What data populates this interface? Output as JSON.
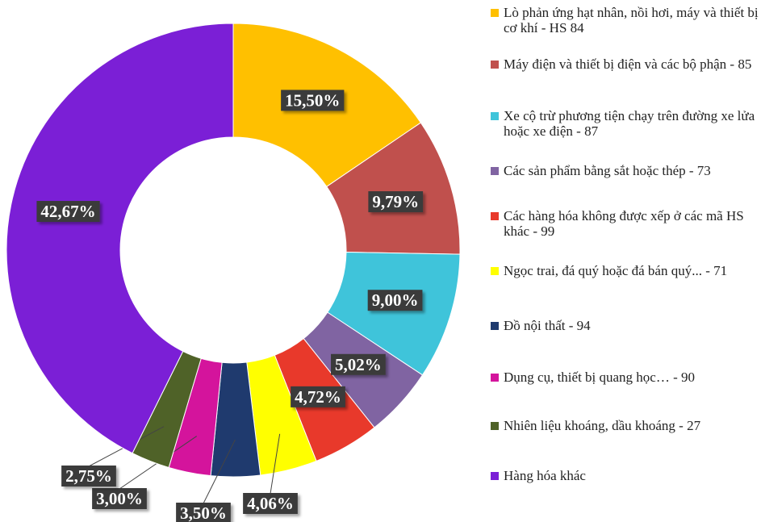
{
  "chart_data": {
    "type": "donut",
    "categories": [
      "Lò phản ứng hạt nhân, nồi hơi, máy và thiết bị cơ khí - HS 84",
      "Máy điện và thiết bị điện và các bộ phận - 85",
      "Xe cộ trừ phương tiện chạy trên đường xe lửa hoặc xe điện - 87",
      "Các sản phẩm bằng sắt hoặc thép - 73",
      "Các hàng hóa không được xếp ở các mã HS khác - 99",
      "Ngọc trai, đá quý hoặc đá bán quý... - 71",
      "Đồ nội thất - 94",
      "Dụng cụ, thiết bị quang học… - 90",
      "Nhiên liệu khoáng, dầu khoáng - 27",
      "Hàng hóa khác"
    ],
    "values": [
      15.5,
      9.79,
      9.0,
      5.02,
      4.72,
      4.06,
      3.5,
      3.0,
      2.75,
      42.67
    ],
    "value_labels": [
      "15,50%",
      "9,79%",
      "9,00%",
      "5,02%",
      "4,72%",
      "4,06%",
      "3,50%",
      "3,00%",
      "2,75%",
      "42,67%"
    ],
    "colors": [
      "#FFC000",
      "#C0504D",
      "#3FC4DA",
      "#8064A2",
      "#E8392B",
      "#FFFF00",
      "#1F3A6E",
      "#D4149C",
      "#4F6228",
      "#7B1FD6"
    ]
  }
}
